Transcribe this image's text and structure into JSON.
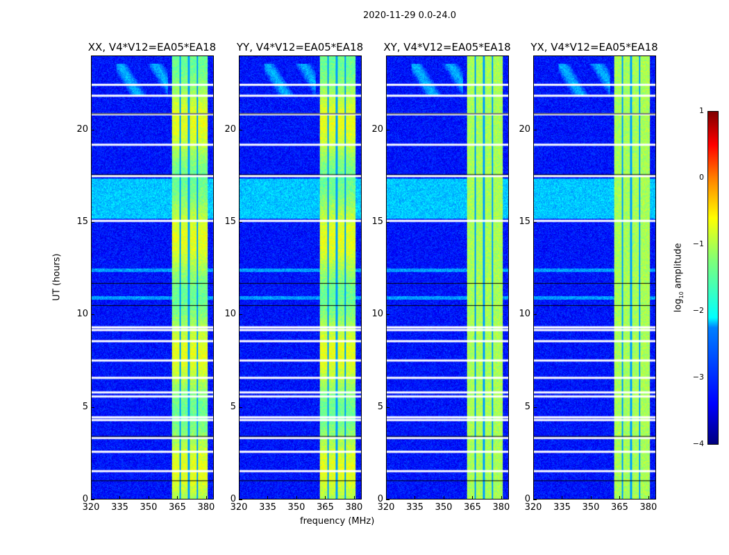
{
  "suptitle": "2020-11-29 0.0-24.0",
  "chart_data": {
    "type": "heatmap",
    "title": "2020-11-29 0.0-24.0",
    "xlabel": "frequency (MHz)",
    "ylabel": "UT (hours)",
    "xlim": [
      320,
      384
    ],
    "ylim": [
      0,
      24
    ],
    "xticks": [
      "320",
      "335",
      "350",
      "365",
      "380"
    ],
    "yticks": [
      "0",
      "5",
      "10",
      "15",
      "20"
    ],
    "panels": [
      {
        "title": "XX, V4*V12=EA05*EA18"
      },
      {
        "title": "YY, V4*V12=EA05*EA18"
      },
      {
        "title": "XY, V4*V12=EA05*EA18"
      },
      {
        "title": "YX, V4*V12=EA05*EA18"
      }
    ],
    "rfi_band_mhz": [
      362,
      381
    ],
    "channel_gaps_mhz": [
      366.5,
      371,
      375.5
    ],
    "background_log_amp": -3.3,
    "band_log_amp": -1.3,
    "flagged_ut_hours": [
      22.45,
      21.86,
      20.85,
      19.2,
      17.5,
      15.07,
      9.3,
      9.15,
      8.55,
      7.5,
      6.56,
      5.77,
      5.55,
      4.42,
      4.27,
      3.3,
      2.55,
      1.5
    ],
    "colorbar": {
      "label": "log10 amplitude",
      "range": [
        -4,
        1
      ],
      "ticks": [
        "1",
        "0",
        "−1",
        "−2",
        "−3",
        "−4"
      ]
    }
  }
}
